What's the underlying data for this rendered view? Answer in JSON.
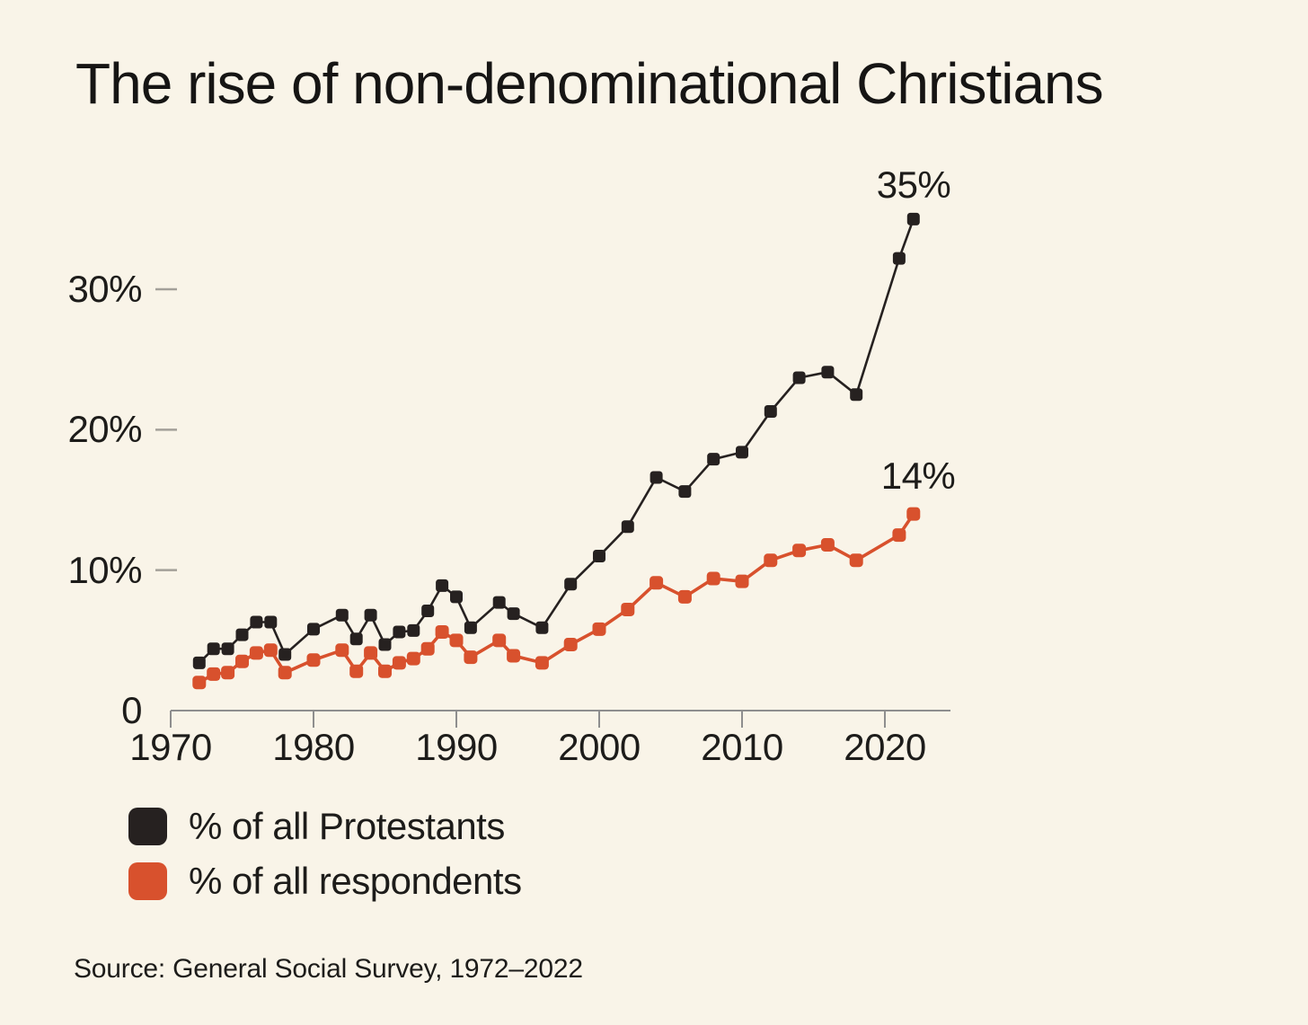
{
  "title": "The rise of non-denominational Christians",
  "source": "Source: General Social Survey, 1972–2022",
  "colors": {
    "background": "#f9f4e8",
    "protestants": "#262120",
    "respondents": "#d8512d",
    "axis": "#8e8e8e",
    "tick_dash": "#a3a099",
    "text": "#1d1c1a"
  },
  "annotations": {
    "protestants_end": "35%",
    "respondents_end": "14%"
  },
  "legend": [
    {
      "label": "% of all Protestants",
      "series": "protestants"
    },
    {
      "label": "% of all respondents",
      "series": "respondents"
    }
  ],
  "chart_data": {
    "type": "line",
    "title": "The rise of non-denominational Christians",
    "xlabel": "",
    "ylabel": "",
    "grid": false,
    "legend_position": "bottom-left",
    "xlim": [
      1970,
      2024.5
    ],
    "ylim": [
      0,
      37
    ],
    "x_ticks": [
      1970,
      1980,
      1990,
      2000,
      2010,
      2020
    ],
    "x_tick_labels": [
      "1970",
      "1980",
      "1990",
      "2000",
      "2010",
      "2020"
    ],
    "y_ticks": [
      0,
      10,
      20,
      30
    ],
    "y_tick_labels": [
      "0",
      "10%",
      "20%",
      "30%"
    ],
    "x": [
      1972,
      1973,
      1974,
      1975,
      1976,
      1977,
      1978,
      1980,
      1982,
      1983,
      1984,
      1985,
      1986,
      1987,
      1988,
      1989,
      1990,
      1991,
      1993,
      1994,
      1996,
      1998,
      2000,
      2002,
      2004,
      2006,
      2008,
      2010,
      2012,
      2014,
      2016,
      2018,
      2021,
      2022
    ],
    "series": [
      {
        "name": "% of all Protestants",
        "color": "#262120",
        "values": [
          3.4,
          4.4,
          4.4,
          5.4,
          6.3,
          6.3,
          4.0,
          5.8,
          6.8,
          5.1,
          6.8,
          4.7,
          5.6,
          5.7,
          7.1,
          8.9,
          8.1,
          5.9,
          7.7,
          6.9,
          5.9,
          9.0,
          11.0,
          13.1,
          16.6,
          15.6,
          17.9,
          18.4,
          21.3,
          23.7,
          24.1,
          22.5,
          32.2,
          35.0
        ],
        "end_label": "35%"
      },
      {
        "name": "% of all respondents",
        "color": "#d8512d",
        "values": [
          2.0,
          2.6,
          2.7,
          3.5,
          4.1,
          4.3,
          2.7,
          3.6,
          4.3,
          2.8,
          4.1,
          2.8,
          3.4,
          3.7,
          4.4,
          5.6,
          5.0,
          3.8,
          5.0,
          3.9,
          3.4,
          4.7,
          5.8,
          7.2,
          9.1,
          8.1,
          9.4,
          9.2,
          10.7,
          11.4,
          11.8,
          10.7,
          12.5,
          14.0
        ],
        "end_label": "14%"
      }
    ]
  }
}
